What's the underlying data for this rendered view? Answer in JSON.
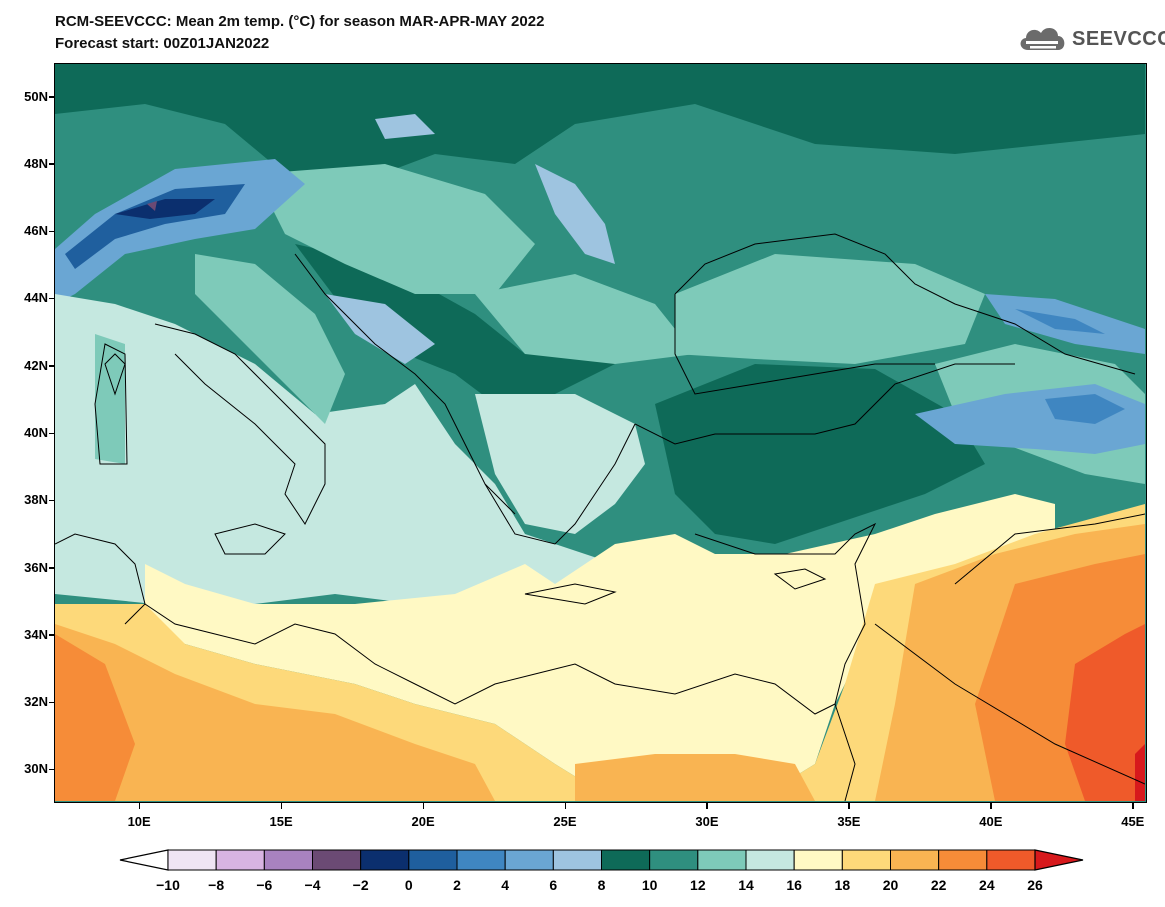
{
  "header": {
    "title_line1": "RCM-SEEVCCC: Mean 2m temp. (°C) for season MAR-APR-MAY 2022",
    "title_line2": "Forecast start: 00Z01JAN2022",
    "logo_text": "SEEVCCC",
    "logo_icon": "cloud-icon"
  },
  "map": {
    "lon_range": [
      7,
      45.5
    ],
    "lat_range": [
      29,
      51
    ],
    "lat_labels": [
      {
        "lat": 50,
        "label": "50N"
      },
      {
        "lat": 48,
        "label": "48N"
      },
      {
        "lat": 46,
        "label": "46N"
      },
      {
        "lat": 44,
        "label": "44N"
      },
      {
        "lat": 42,
        "label": "42N"
      },
      {
        "lat": 40,
        "label": "40N"
      },
      {
        "lat": 38,
        "label": "38N"
      },
      {
        "lat": 36,
        "label": "36N"
      },
      {
        "lat": 34,
        "label": "34N"
      },
      {
        "lat": 32,
        "label": "32N"
      },
      {
        "lat": 30,
        "label": "30N"
      }
    ],
    "lon_labels": [
      {
        "lon": 10,
        "label": "10E"
      },
      {
        "lon": 15,
        "label": "15E"
      },
      {
        "lon": 20,
        "label": "20E"
      },
      {
        "lon": 25,
        "label": "25E"
      },
      {
        "lon": 30,
        "label": "30E"
      },
      {
        "lon": 35,
        "label": "35E"
      },
      {
        "lon": 40,
        "label": "40E"
      },
      {
        "lon": 45,
        "label": "45E"
      }
    ]
  },
  "colorbar": {
    "labels": [
      "−10",
      "−8",
      "−6",
      "−4",
      "−2",
      "0",
      "2",
      "4",
      "6",
      "8",
      "10",
      "12",
      "14",
      "16",
      "18",
      "20",
      "22",
      "24",
      "26"
    ],
    "under_color": "#ffffff",
    "over_color": "#d7191c",
    "colors": [
      "#efe4f4",
      "#d8b4e2",
      "#a882c0",
      "#6b4a74",
      "#0b2f6e",
      "#1f5f9e",
      "#3f86c1",
      "#6aa6d3",
      "#9ec4e0",
      "#0e6a58",
      "#2f8f7f",
      "#7ecab9",
      "#c5e8e0",
      "#fff9c4",
      "#fdd97a",
      "#f9b452",
      "#f68c38",
      "#ef5a2a"
    ]
  }
}
